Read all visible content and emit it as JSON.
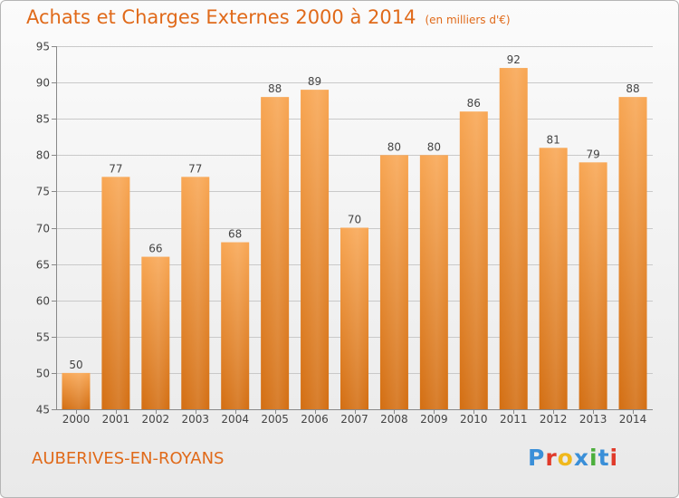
{
  "title": "Achats et Charges Externes 2000 à 2014",
  "unit": "(en milliers d'€)",
  "commune": "AUBERIVES-EN-ROYANS",
  "logo": {
    "letters": [
      {
        "ch": "P",
        "color": "#3a8fd8"
      },
      {
        "ch": "r",
        "color": "#e03a2a"
      },
      {
        "ch": "o",
        "color": "#f0b81c"
      },
      {
        "ch": "x",
        "color": "#3a8fd8"
      },
      {
        "ch": "i",
        "color": "#4caf3c"
      },
      {
        "ch": "t",
        "color": "#3a8fd8"
      },
      {
        "ch": "i",
        "color": "#e03a2a"
      }
    ]
  },
  "colors": {
    "bar_top": "#f8a653",
    "bar_bottom": "#d36e12",
    "grid": "#c9c9c9",
    "accent": "#e06a1a"
  },
  "chart_data": {
    "type": "bar",
    "categories": [
      "2000",
      "2001",
      "2002",
      "2003",
      "2004",
      "2005",
      "2006",
      "2007",
      "2008",
      "2009",
      "2010",
      "2011",
      "2012",
      "2013",
      "2014"
    ],
    "values": [
      50,
      77,
      66,
      77,
      68,
      88,
      89,
      70,
      80,
      80,
      86,
      92,
      81,
      79,
      88
    ],
    "ylim": [
      45,
      95
    ],
    "yticks": [
      45,
      50,
      55,
      60,
      65,
      70,
      75,
      80,
      85,
      90,
      95
    ],
    "grid": true
  }
}
